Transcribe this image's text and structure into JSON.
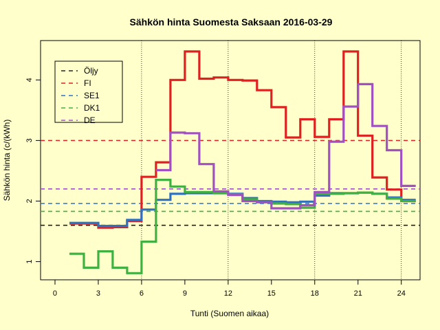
{
  "chart_data": {
    "type": "line",
    "step": true,
    "title": "Sähkön hinta Suomesta Saksaan 2016-03-29",
    "xlabel": "Tunti (Suomen aikaa)",
    "ylabel": "Sähkön hinta (c/(kWh)",
    "xlim": [
      -1,
      25.3
    ],
    "ylim": [
      0.7,
      4.65
    ],
    "xticks": [
      0,
      3,
      6,
      9,
      12,
      15,
      18,
      21,
      24
    ],
    "yticks": [
      1,
      2,
      3,
      4
    ],
    "vgrid": [
      6,
      12,
      18,
      24
    ],
    "legend_position": "top-left",
    "hours": [
      1,
      2,
      3,
      4,
      5,
      6,
      7,
      8,
      9,
      10,
      11,
      12,
      13,
      14,
      15,
      16,
      17,
      18,
      19,
      20,
      21,
      22,
      23,
      24
    ],
    "series": [
      {
        "name": "Öljy",
        "kind": "reference",
        "value": 1.6,
        "color": "#222222"
      },
      {
        "name": "FI",
        "kind": "reference",
        "value": 3.0,
        "color": "#DF2020"
      },
      {
        "name": "SE1",
        "kind": "reference",
        "value": 1.96,
        "color": "#3070C0"
      },
      {
        "name": "DK1",
        "kind": "reference",
        "value": 1.83,
        "color": "#40B040"
      },
      {
        "name": "DE",
        "kind": "reference",
        "value": 2.2,
        "color": "#A050C0"
      },
      {
        "name": "FI",
        "kind": "hourly",
        "color": "#DF2020",
        "values": [
          1.63,
          1.63,
          1.56,
          1.57,
          1.67,
          2.4,
          2.64,
          4.0,
          4.47,
          4.02,
          4.04,
          4.0,
          3.99,
          3.83,
          3.55,
          3.05,
          3.35,
          3.06,
          3.35,
          4.47,
          3.08,
          2.39,
          2.19,
          2.0
        ]
      },
      {
        "name": "SE1",
        "kind": "hourly",
        "color": "#3070C0",
        "values": [
          1.64,
          1.64,
          1.59,
          1.59,
          1.69,
          1.86,
          2.02,
          2.12,
          2.13,
          2.13,
          2.13,
          2.12,
          2.05,
          2.0,
          1.99,
          1.98,
          1.99,
          2.09,
          2.13,
          2.13,
          2.14,
          2.12,
          2.06,
          2.02
        ]
      },
      {
        "name": "DK1",
        "kind": "hourly",
        "color": "#40B040",
        "values": [
          1.13,
          0.9,
          1.17,
          0.9,
          0.81,
          1.33,
          2.35,
          2.24,
          2.15,
          2.15,
          2.13,
          2.11,
          2.03,
          1.98,
          1.96,
          1.95,
          1.89,
          2.12,
          2.12,
          2.13,
          2.14,
          2.12,
          2.04,
          2.0
        ]
      },
      {
        "name": "DE",
        "kind": "hourly",
        "color": "#A050C0",
        "values": [
          null,
          null,
          null,
          null,
          null,
          null,
          2.51,
          3.13,
          3.12,
          2.61,
          2.16,
          2.1,
          2.0,
          1.98,
          1.88,
          1.88,
          1.93,
          2.15,
          2.98,
          3.56,
          3.93,
          3.24,
          2.84,
          2.25
        ]
      }
    ]
  }
}
